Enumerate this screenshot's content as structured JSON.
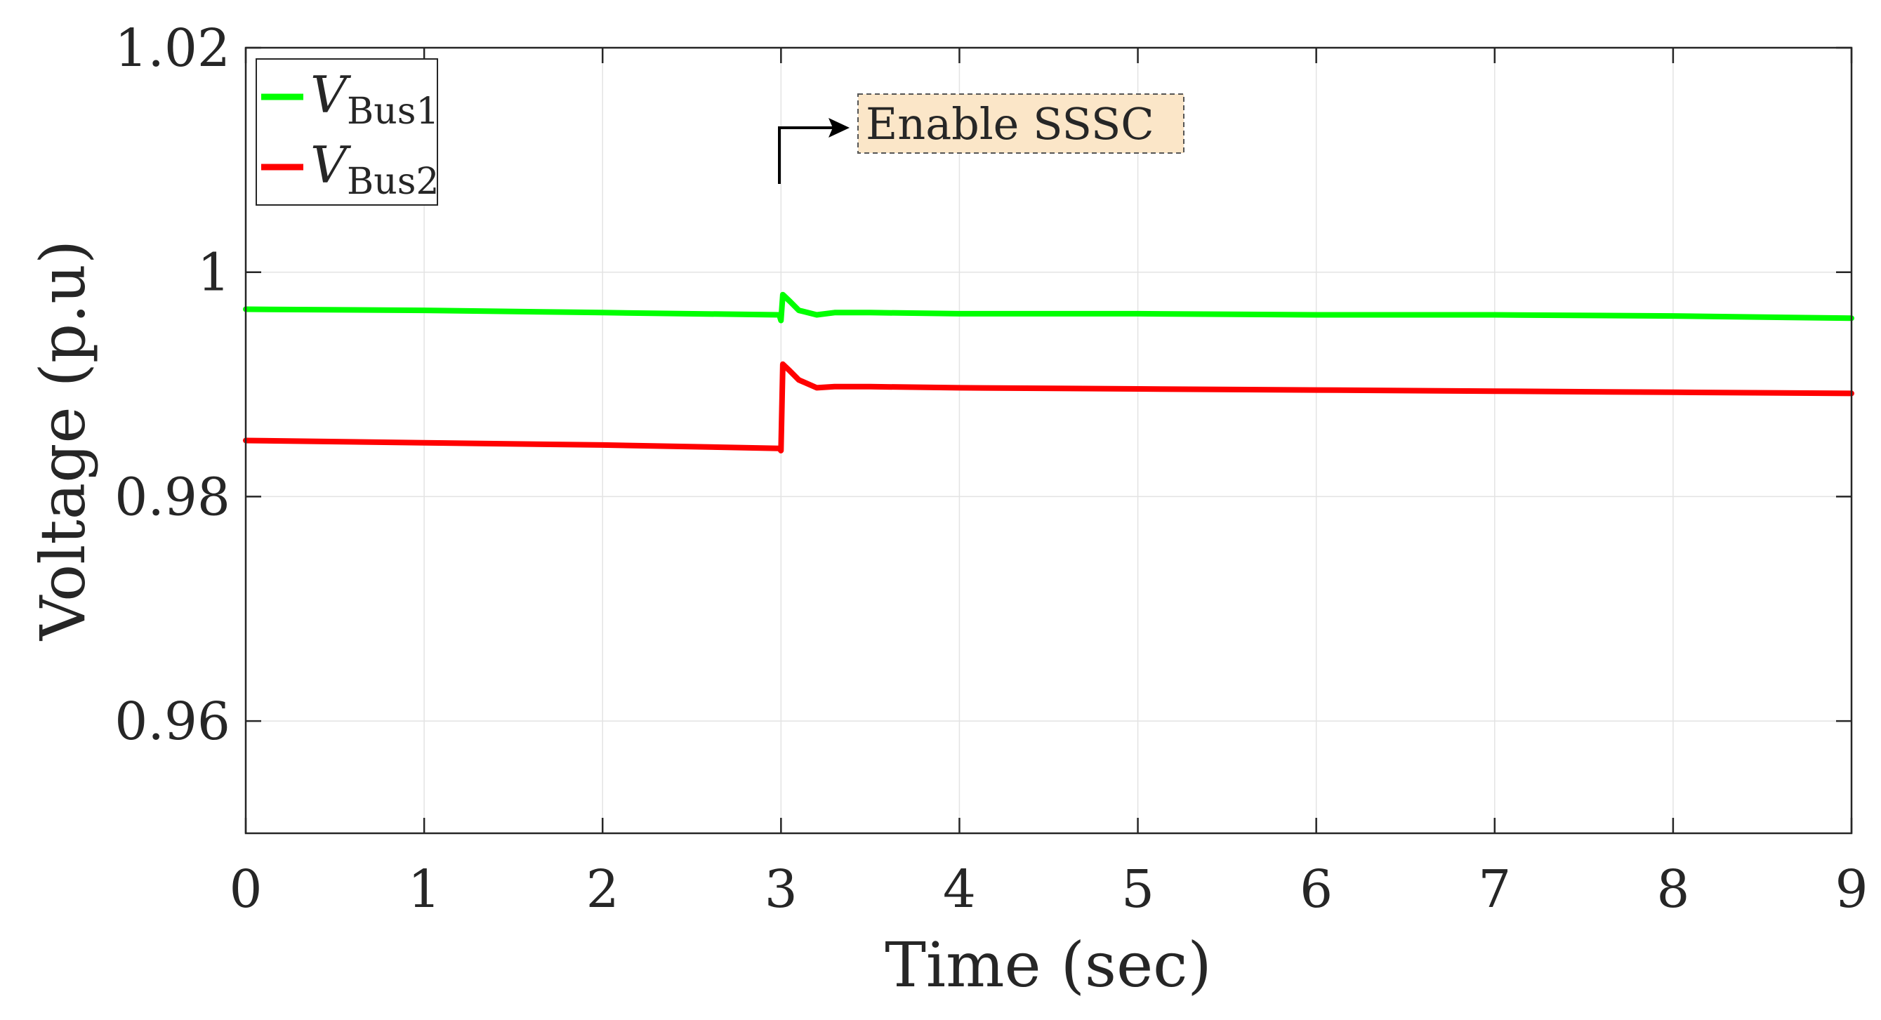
{
  "chart_data": {
    "type": "line",
    "xlabel": "Time (sec)",
    "ylabel": "Voltage (p.u)",
    "xlim": [
      0,
      9
    ],
    "ylim": [
      0.95,
      1.02
    ],
    "xticks": [
      "0",
      "1",
      "2",
      "3",
      "4",
      "5",
      "6",
      "7",
      "8",
      "9"
    ],
    "yticks": [
      "0.96",
      "0.98",
      "1",
      "1.02"
    ],
    "ytick_values": [
      0.96,
      0.98,
      1.0,
      1.02
    ],
    "grid": true,
    "legend_position": "top-left",
    "series": [
      {
        "name": "V",
        "name_sub": "Bus1",
        "color": "#00ff00",
        "x": [
          0,
          1,
          2,
          2.99,
          3.0,
          3.01,
          3.05,
          3.1,
          3.2,
          3.3,
          3.5,
          4,
          5,
          6,
          7,
          8,
          9
        ],
        "y": [
          0.9967,
          0.9966,
          0.9964,
          0.9962,
          0.9957,
          0.998,
          0.9974,
          0.9966,
          0.9962,
          0.9964,
          0.9964,
          0.9963,
          0.9963,
          0.9962,
          0.9962,
          0.9961,
          0.9959
        ]
      },
      {
        "name": "V",
        "name_sub": "Bus2",
        "color": "#ff0000",
        "x": [
          0,
          1,
          2,
          2.99,
          3.0,
          3.01,
          3.05,
          3.1,
          3.2,
          3.3,
          3.5,
          4,
          5,
          6,
          7,
          8,
          9
        ],
        "y": [
          0.985,
          0.9848,
          0.9846,
          0.9843,
          0.9841,
          0.9918,
          0.9912,
          0.9904,
          0.9897,
          0.9898,
          0.9898,
          0.9897,
          0.9896,
          0.9895,
          0.9894,
          0.9893,
          0.9892
        ]
      }
    ],
    "annotation": {
      "text": "Enable SSSC",
      "x": 3.0,
      "box_color": "#fbe6c8"
    }
  }
}
